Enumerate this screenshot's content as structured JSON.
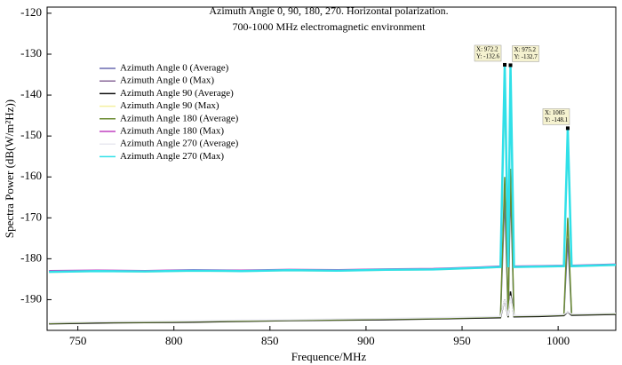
{
  "chart_data": {
    "type": "line",
    "title": "Azimuth Angle 0, 90, 180, 270. Horizontal polarization.",
    "subtitle": "700-1000 MHz electromagnetic environment",
    "x_label": "Frequence/MHz",
    "y_label": "Spectra Power (dB(W/m²Hz))",
    "x": [
      735,
      760,
      785,
      810,
      835,
      860,
      885,
      910,
      935,
      960,
      970,
      972.2,
      974,
      975.2,
      977,
      990,
      1003,
      1005,
      1007,
      1030
    ],
    "xlim": [
      734,
      1030
    ],
    "xticks": [
      750,
      800,
      850,
      900,
      950,
      1000
    ],
    "ylim": [
      -197.5,
      -118.5
    ],
    "yticks": [
      -120,
      -130,
      -140,
      -150,
      -160,
      -170,
      -180,
      -190
    ],
    "grid": false,
    "series": [
      {
        "name": "Azimuth Angle 0 (Average)",
        "color": "#6a6ab0",
        "values": [
          -195.7,
          -195.6,
          -195.4,
          -195.4,
          -195.1,
          -195.0,
          -194.8,
          -194.8,
          -194.5,
          -194.4,
          -194.3,
          -165,
          -194.2,
          -162,
          -194.1,
          -194.0,
          -193.8,
          -175,
          -193.7,
          -193.5
        ]
      },
      {
        "name": "Azimuth Angle 0 (Max)",
        "color": "#8a6a9a",
        "values": [
          -183.1,
          -182.9,
          -183.0,
          -182.8,
          -182.9,
          -182.7,
          -182.8,
          -182.6,
          -182.5,
          -182.1,
          -181.9,
          -134.5,
          -182.0,
          -133.5,
          -181.9,
          -181.8,
          -181.7,
          -150,
          -181.7,
          -181.4
        ]
      },
      {
        "name": "Azimuth Angle 90 (Average)",
        "color": "#111111",
        "values": [
          -195.9,
          -195.7,
          -195.6,
          -195.5,
          -195.3,
          -195.1,
          -195.0,
          -194.9,
          -194.7,
          -194.5,
          -194.4,
          -190,
          -194.3,
          -188,
          -194.2,
          -194.1,
          -193.9,
          -193,
          -193.8,
          -193.6
        ]
      },
      {
        "name": "Azimuth Angle 90 (Max)",
        "color": "#f4f0a0",
        "values": [
          -183.3,
          -183.1,
          -183.2,
          -183.0,
          -183.1,
          -182.9,
          -183.0,
          -182.8,
          -182.7,
          -182.3,
          -182.1,
          -140,
          -182.2,
          -141,
          -182.1,
          -182.0,
          -181.9,
          -152,
          -181.9,
          -181.6
        ]
      },
      {
        "name": "Azimuth Angle 180 (Average)",
        "color": "#6a8a30",
        "values": [
          -195.8,
          -195.5,
          -195.5,
          -195.3,
          -195.2,
          -195.0,
          -194.9,
          -194.7,
          -194.6,
          -194.3,
          -194.2,
          -160,
          -194.1,
          -158,
          -194.0,
          -193.9,
          -193.7,
          -170,
          -193.6,
          -193.4
        ]
      },
      {
        "name": "Azimuth Angle 180 (Max)",
        "color": "#c040c0",
        "values": [
          -182.9,
          -182.8,
          -182.9,
          -182.7,
          -182.8,
          -182.6,
          -182.7,
          -182.5,
          -182.4,
          -182.0,
          -181.8,
          -137,
          -181.9,
          -135,
          -181.8,
          -181.7,
          -181.6,
          -149,
          -181.6,
          -181.3
        ]
      },
      {
        "name": "Azimuth Angle 270 (Average)",
        "color": "#e8e8f0",
        "values": [
          -195.6,
          -195.4,
          -195.3,
          -195.2,
          -195.0,
          -194.9,
          -194.7,
          -194.6,
          -194.4,
          -194.2,
          -194.1,
          -190,
          -194.0,
          -189,
          -193.9,
          -193.8,
          -193.6,
          -193,
          -193.5,
          -193.3
        ]
      },
      {
        "name": "Azimuth Angle 270 (Max)",
        "color": "#30e0e8",
        "values": [
          -183.2,
          -183.0,
          -183.1,
          -182.9,
          -183.0,
          -182.8,
          -182.9,
          -182.7,
          -182.6,
          -182.2,
          -182.0,
          -132.6,
          -182.1,
          -132.7,
          -182.0,
          -181.9,
          -181.8,
          -148.1,
          -181.8,
          -181.5
        ]
      }
    ],
    "annotations": [
      [
        "X: 972.2",
        "Y: -132.6"
      ],
      [
        "X: 975.2",
        "Y: -132.7"
      ],
      [
        "X: 1005",
        "Y: -148.1"
      ]
    ]
  }
}
